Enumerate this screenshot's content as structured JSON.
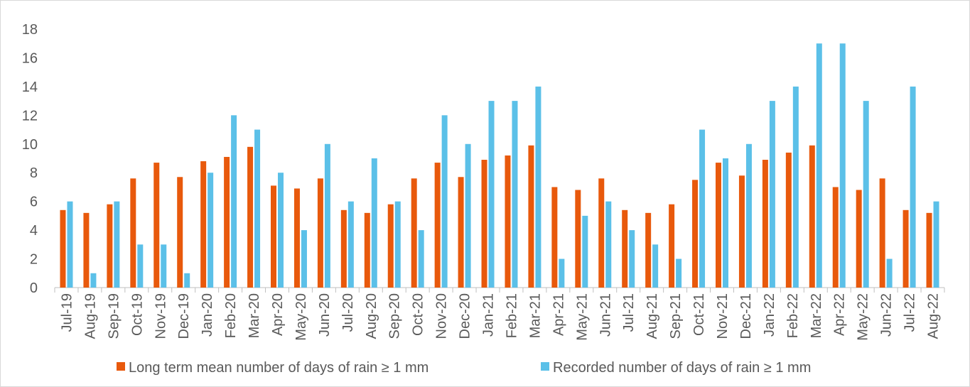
{
  "chart_data": {
    "type": "bar",
    "title": "",
    "xlabel": "",
    "ylabel": "",
    "ylim": [
      0,
      18
    ],
    "yticks": [
      0,
      2,
      4,
      6,
      8,
      10,
      12,
      14,
      16,
      18
    ],
    "grid": false,
    "legend_position": "bottom",
    "categories": [
      "Jul-19",
      "Aug-19",
      "Sep-19",
      "Oct-19",
      "Nov-19",
      "Dec-19",
      "Jan-20",
      "Feb-20",
      "Mar-20",
      "Apr-20",
      "May-20",
      "Jun-20",
      "Jul-20",
      "Aug-20",
      "Sep-20",
      "Oct-20",
      "Nov-20",
      "Dec-20",
      "Jan-21",
      "Feb-21",
      "Mar-21",
      "Apr-21",
      "May-21",
      "Jun-21",
      "Jul-21",
      "Aug-21",
      "Sep-21",
      "Oct-21",
      "Nov-21",
      "Dec-21",
      "Jan-22",
      "Feb-22",
      "Mar-22",
      "Apr-22",
      "May-22",
      "Jun-22",
      "Jul-22",
      "Aug-22"
    ],
    "series": [
      {
        "name": "Long term mean number of days of rain ≥ 1 mm",
        "color": "#e8590c",
        "values": [
          5.4,
          5.2,
          5.8,
          7.6,
          8.7,
          7.7,
          8.8,
          9.1,
          9.8,
          7.1,
          6.9,
          7.6,
          5.4,
          5.2,
          5.8,
          7.6,
          8.7,
          7.7,
          8.9,
          9.2,
          9.9,
          7.0,
          6.8,
          7.6,
          5.4,
          5.2,
          5.8,
          7.5,
          8.7,
          7.8,
          8.9,
          9.4,
          9.9,
          7.0,
          6.8,
          7.6,
          5.4,
          5.2
        ]
      },
      {
        "name": "Recorded number of days of rain ≥ 1 mm",
        "color": "#5bc0e8",
        "values": [
          6,
          1,
          6,
          3,
          3,
          1,
          8,
          12,
          11,
          8,
          4,
          10,
          6,
          9,
          6,
          4,
          12,
          10,
          13,
          13,
          14,
          2,
          5,
          6,
          4,
          3,
          2,
          11,
          9,
          10,
          13,
          14,
          17,
          17,
          13,
          2,
          14,
          6
        ]
      }
    ]
  }
}
